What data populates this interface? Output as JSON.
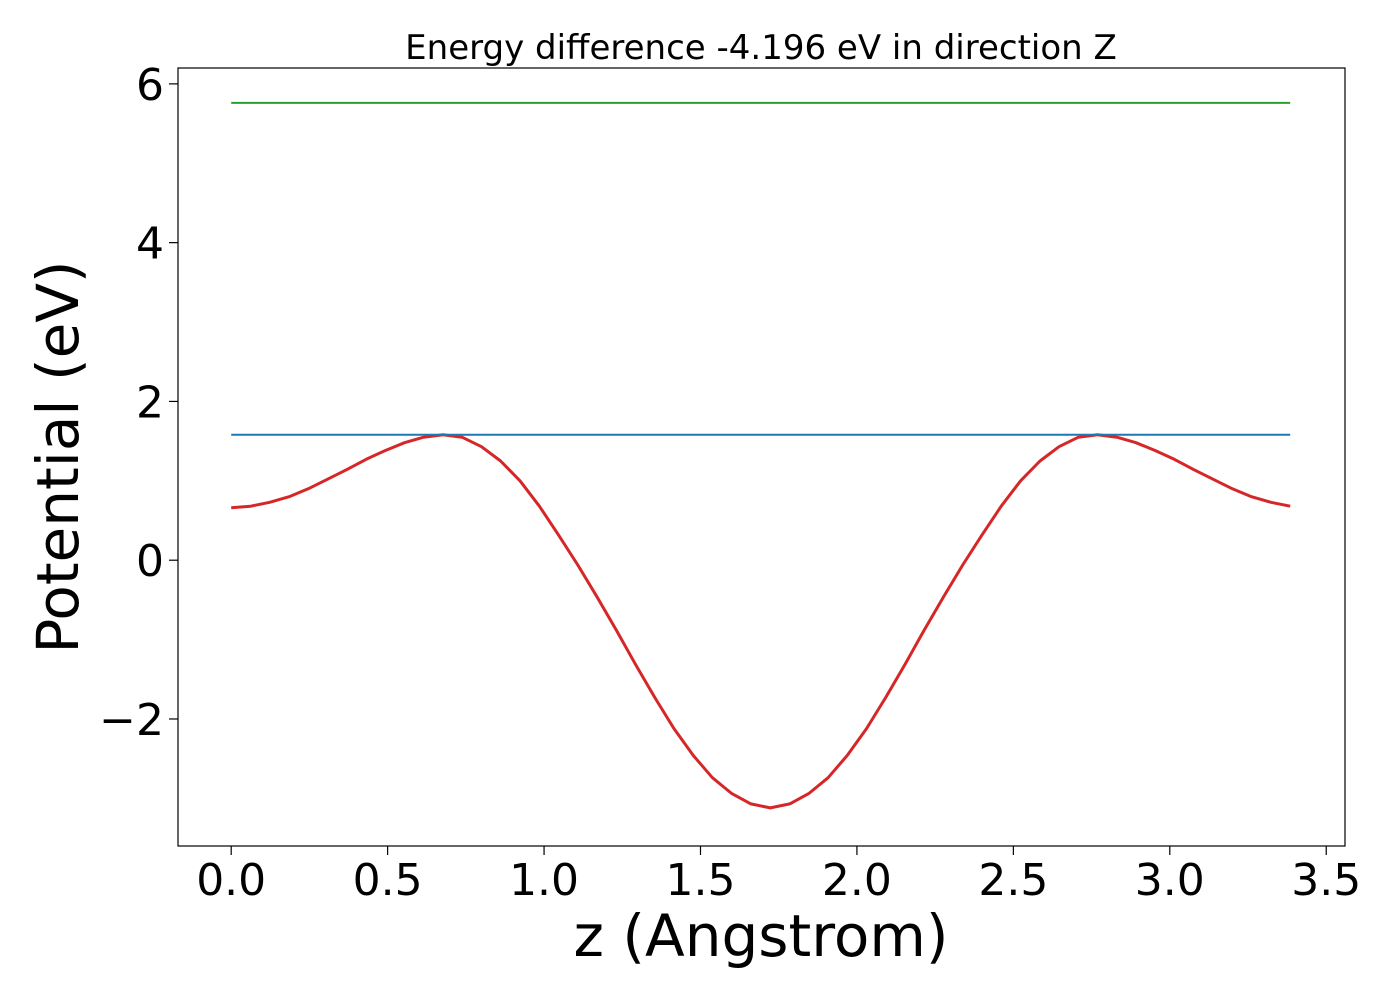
{
  "chart_data": {
    "type": "line",
    "title": "Energy difference -4.196 eV in direction Z",
    "xlabel": "z (Angstrom)",
    "ylabel": "Potential (eV)",
    "xlim": [
      -0.17,
      3.56
    ],
    "ylim": [
      -3.6,
      6.2
    ],
    "xticks": [
      0.0,
      0.5,
      1.0,
      1.5,
      2.0,
      2.5,
      3.0,
      3.5
    ],
    "xtick_labels": [
      "0.0",
      "0.5",
      "1.0",
      "1.5",
      "2.0",
      "2.5",
      "3.0",
      "3.5"
    ],
    "yticks": [
      -2,
      0,
      2,
      4,
      6
    ],
    "ytick_labels": [
      "−2",
      "0",
      "2",
      "4",
      "6"
    ],
    "grid": false,
    "series": [
      {
        "color": "#d62728",
        "x": [
          0.0,
          0.062,
          0.123,
          0.185,
          0.246,
          0.308,
          0.369,
          0.431,
          0.492,
          0.554,
          0.615,
          0.677,
          0.738,
          0.8,
          0.861,
          0.923,
          0.985,
          1.046,
          1.108,
          1.169,
          1.231,
          1.292,
          1.354,
          1.415,
          1.477,
          1.538,
          1.6,
          1.661,
          1.723,
          1.785,
          1.846,
          1.908,
          1.969,
          2.031,
          2.092,
          2.154,
          2.215,
          2.277,
          2.338,
          2.4,
          2.461,
          2.523,
          2.585,
          2.646,
          2.708,
          2.769,
          2.831,
          2.892,
          2.954,
          3.015,
          3.077,
          3.138,
          3.2,
          3.261,
          3.323,
          3.385
        ],
        "y": [
          0.66,
          0.68,
          0.73,
          0.8,
          0.9,
          1.02,
          1.14,
          1.27,
          1.38,
          1.48,
          1.55,
          1.58,
          1.55,
          1.43,
          1.25,
          1.0,
          0.68,
          0.32,
          -0.06,
          -0.46,
          -0.88,
          -1.31,
          -1.73,
          -2.12,
          -2.46,
          -2.74,
          -2.94,
          -3.07,
          -3.12,
          -3.07,
          -2.94,
          -2.74,
          -2.46,
          -2.12,
          -1.73,
          -1.31,
          -0.88,
          -0.46,
          -0.06,
          0.32,
          0.68,
          1.0,
          1.25,
          1.43,
          1.55,
          1.58,
          1.55,
          1.48,
          1.38,
          1.27,
          1.14,
          1.02,
          0.9,
          0.8,
          0.73,
          0.68
        ]
      },
      {
        "color": "#1f77b4",
        "x": [
          0.0,
          3.385
        ],
        "y": [
          1.58,
          1.58
        ]
      },
      {
        "color": "#2ca02c",
        "x": [
          0.0,
          3.385
        ],
        "y": [
          5.76,
          5.76
        ]
      }
    ]
  }
}
